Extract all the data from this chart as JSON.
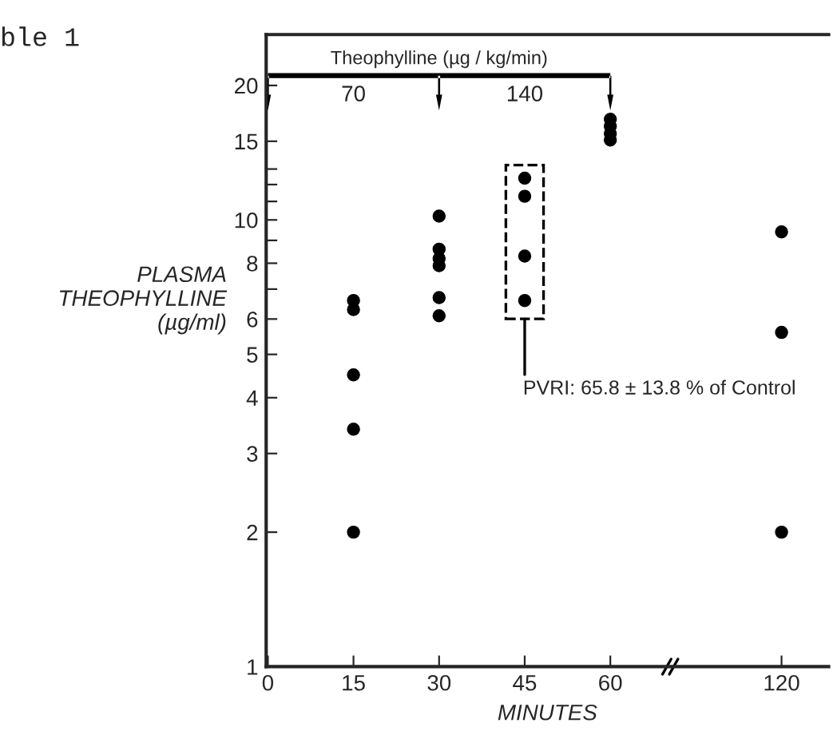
{
  "chart_data": {
    "type": "scatter",
    "xlabel": "MINUTES",
    "ylabel": "PLASMA\nTHEOPHYLLINE\n(µg/ml)",
    "categories": [
      "0",
      "15",
      "30",
      "45",
      "60",
      null,
      "120"
    ],
    "series": [
      {
        "color": "#000000",
        "x": [
          "15",
          "15",
          "15",
          "15",
          "15",
          "30",
          "30",
          "30",
          "30",
          "30",
          "30",
          "45",
          "45",
          "45",
          "45",
          "60",
          "60",
          "60",
          "60",
          "120",
          "120",
          "120"
        ],
        "values": [
          2.0,
          3.4,
          4.5,
          6.3,
          6.6,
          6.1,
          6.7,
          7.9,
          8.2,
          8.6,
          10.2,
          6.6,
          8.3,
          11.3,
          12.4,
          15.1,
          15.6,
          16.2,
          16.8,
          2.0,
          5.6,
          9.4
        ]
      }
    ],
    "ylim": [
      1,
      26
    ],
    "yticks": [
      1,
      2,
      3,
      4,
      5,
      6,
      {
        "value": 7,
        "label": null
      },
      8,
      {
        "value": 9,
        "label": null
      },
      10,
      {
        "value": 11,
        "label": null
      },
      {
        "value": 12,
        "label": null
      },
      {
        "value": 13,
        "label": null
      },
      15,
      20
    ],
    "log": "y",
    "grid": false,
    "legend": false,
    "marker": "circle",
    "annotations": [
      "ble 1",
      "Theophylline (µg / kg/min)",
      "70",
      "140",
      "PVRI: 65.8 ± 13.8 % of Control"
    ]
  }
}
